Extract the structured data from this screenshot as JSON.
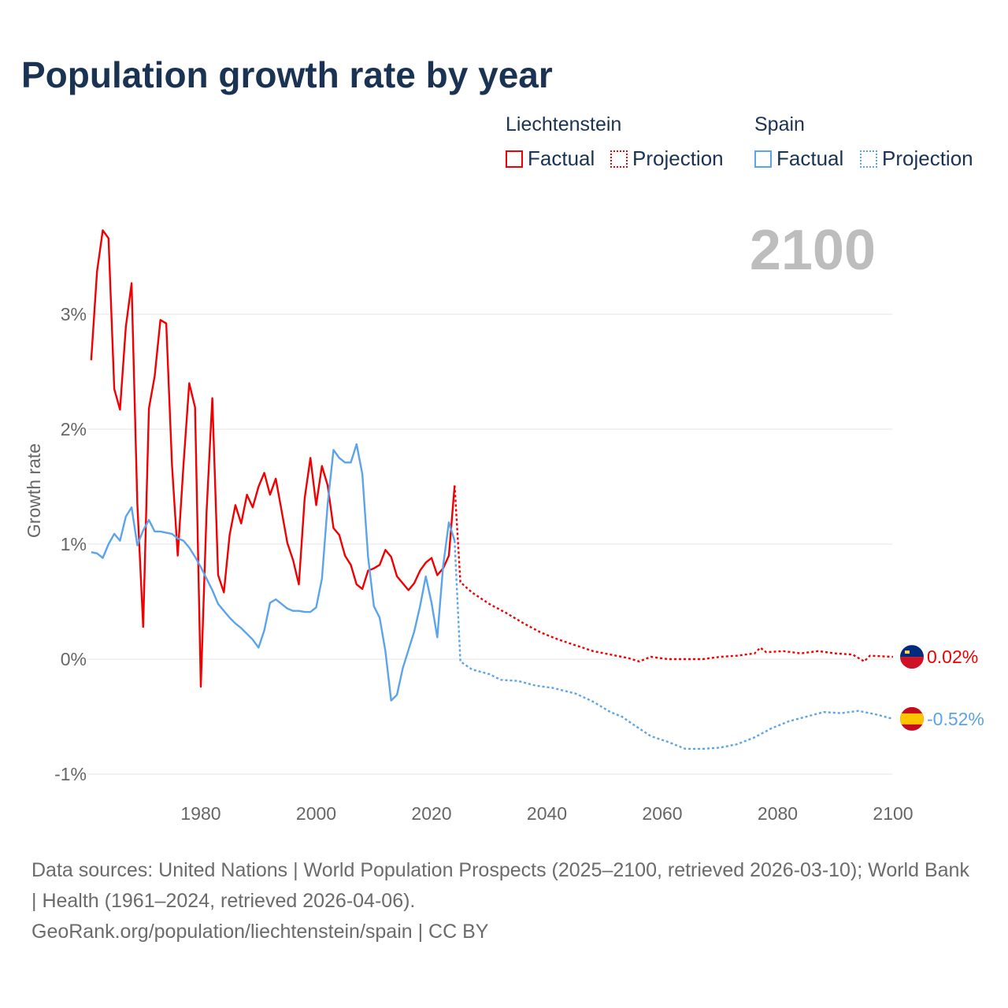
{
  "title": "Population growth rate by year",
  "legend": {
    "groups": [
      {
        "name": "Liechtenstein",
        "factual": "Factual",
        "projection": "Projection",
        "color": "#f00000"
      },
      {
        "name": "Spain",
        "factual": "Factual",
        "projection": "Projection",
        "color": "#5ba3ea"
      }
    ]
  },
  "chart_data": {
    "type": "line",
    "title": "Population growth rate by year",
    "ylabel": "Growth rate",
    "xlabel": "",
    "xlim": [
      1961,
      2100
    ],
    "ylim": [
      -1.2,
      3.9
    ],
    "yticks": [
      -1,
      0,
      1,
      2,
      3
    ],
    "ytick_labels": [
      "-1%",
      "0%",
      "1%",
      "2%",
      "3%"
    ],
    "xticks": [
      1980,
      2000,
      2020,
      2040,
      2060,
      2080,
      2100
    ],
    "xtick_labels": [
      "1980",
      "2000",
      "2020",
      "2040",
      "2060",
      "2080",
      "2100"
    ],
    "year_label": "2100",
    "series": [
      {
        "name": "Liechtenstein Factual",
        "color": "#f00000",
        "style": "solid",
        "x": [
          1961,
          1962,
          1963,
          1964,
          1965,
          1966,
          1967,
          1968,
          1969,
          1970,
          1971,
          1972,
          1973,
          1974,
          1975,
          1976,
          1977,
          1978,
          1979,
          1980,
          1981,
          1982,
          1983,
          1984,
          1985,
          1986,
          1987,
          1988,
          1989,
          1990,
          1991,
          1992,
          1993,
          1994,
          1995,
          1996,
          1997,
          1998,
          1999,
          2000,
          2001,
          2002,
          2003,
          2004,
          2005,
          2006,
          2007,
          2008,
          2009,
          2010,
          2011,
          2012,
          2013,
          2014,
          2015,
          2016,
          2017,
          2018,
          2019,
          2020,
          2021,
          2022,
          2023,
          2024
        ],
        "y": [
          2.6,
          3.37,
          3.73,
          3.66,
          2.35,
          2.17,
          2.89,
          3.27,
          1.35,
          0.28,
          2.18,
          2.46,
          2.95,
          2.92,
          1.69,
          0.9,
          1.69,
          2.4,
          2.19,
          -0.24,
          1.28,
          2.27,
          0.73,
          0.58,
          1.08,
          1.34,
          1.18,
          1.43,
          1.32,
          1.5,
          1.62,
          1.43,
          1.57,
          1.29,
          1.01,
          0.86,
          0.65,
          1.4,
          1.75,
          1.34,
          1.68,
          1.51,
          1.14,
          1.08,
          0.9,
          0.82,
          0.65,
          0.61,
          0.77,
          0.79,
          0.82,
          0.95,
          0.89,
          0.72,
          0.66,
          0.6,
          0.66,
          0.77,
          0.84,
          0.88,
          0.73,
          0.79,
          0.9,
          1.51
        ]
      },
      {
        "name": "Liechtenstein Projection",
        "color": "#f00000",
        "style": "dotted",
        "x": [
          2024,
          2025,
          2027,
          2030,
          2033,
          2036,
          2039,
          2042,
          2045,
          2048,
          2051,
          2054,
          2056,
          2058,
          2061,
          2064,
          2067,
          2070,
          2073,
          2076,
          2077,
          2078,
          2081,
          2084,
          2087,
          2090,
          2093,
          2095,
          2096,
          2100
        ],
        "y": [
          1.51,
          0.67,
          0.58,
          0.48,
          0.4,
          0.31,
          0.23,
          0.17,
          0.12,
          0.07,
          0.04,
          0.01,
          -0.02,
          0.02,
          0.0,
          0.0,
          0.0,
          0.02,
          0.03,
          0.05,
          0.1,
          0.06,
          0.07,
          0.05,
          0.07,
          0.05,
          0.04,
          -0.02,
          0.03,
          0.02
        ]
      },
      {
        "name": "Spain Factual",
        "color": "#5ba3ea",
        "style": "solid",
        "x": [
          1961,
          1962,
          1963,
          1964,
          1965,
          1966,
          1967,
          1968,
          1969,
          1970,
          1971,
          1972,
          1973,
          1974,
          1975,
          1976,
          1977,
          1978,
          1979,
          1980,
          1981,
          1982,
          1983,
          1984,
          1985,
          1986,
          1987,
          1988,
          1989,
          1990,
          1991,
          1992,
          1993,
          1994,
          1995,
          1996,
          1997,
          1998,
          1999,
          2000,
          2001,
          2002,
          2003,
          2004,
          2005,
          2006,
          2007,
          2008,
          2009,
          2010,
          2011,
          2012,
          2013,
          2014,
          2015,
          2016,
          2017,
          2018,
          2019,
          2020,
          2021,
          2022,
          2023,
          2024
        ],
        "y": [
          0.93,
          0.92,
          0.88,
          1.0,
          1.09,
          1.03,
          1.24,
          1.32,
          0.99,
          1.12,
          1.21,
          1.11,
          1.11,
          1.1,
          1.09,
          1.05,
          1.03,
          0.97,
          0.89,
          0.8,
          0.7,
          0.6,
          0.48,
          0.42,
          0.36,
          0.31,
          0.27,
          0.22,
          0.17,
          0.1,
          0.25,
          0.49,
          0.52,
          0.48,
          0.44,
          0.42,
          0.42,
          0.41,
          0.41,
          0.45,
          0.7,
          1.35,
          1.82,
          1.75,
          1.71,
          1.71,
          1.87,
          1.61,
          0.89,
          0.46,
          0.36,
          0.07,
          -0.36,
          -0.31,
          -0.08,
          0.08,
          0.24,
          0.46,
          0.72,
          0.49,
          0.19,
          0.81,
          1.19,
          1.03
        ]
      },
      {
        "name": "Spain Projection",
        "color": "#5ba3ea",
        "style": "dotted",
        "x": [
          2024,
          2025,
          2027,
          2030,
          2032,
          2035,
          2038,
          2041,
          2045,
          2048,
          2051,
          2053,
          2055,
          2058,
          2061,
          2064,
          2067,
          2070,
          2073,
          2076,
          2079,
          2082,
          2085,
          2088,
          2091,
          2094,
          2097,
          2100
        ],
        "y": [
          1.03,
          -0.02,
          -0.09,
          -0.13,
          -0.18,
          -0.19,
          -0.23,
          -0.25,
          -0.3,
          -0.37,
          -0.46,
          -0.5,
          -0.57,
          -0.67,
          -0.72,
          -0.78,
          -0.78,
          -0.77,
          -0.74,
          -0.68,
          -0.6,
          -0.54,
          -0.5,
          -0.46,
          -0.47,
          -0.45,
          -0.48,
          -0.52
        ]
      }
    ],
    "end_labels": [
      {
        "country": "Liechtenstein",
        "value": 0.02,
        "text": "0.02%",
        "color": "#f00000"
      },
      {
        "country": "Spain",
        "value": -0.52,
        "text": "-0.52%",
        "color": "#5ba3ea"
      }
    ]
  },
  "footer": {
    "line1": "Data sources: United Nations | World Population Prospects (2025–2100, retrieved 2026-03-10); World Bank | Health (1961–2024, retrieved 2026-04-06).",
    "line2": "GeoRank.org/population/liechtenstein/spain | CC BY"
  }
}
